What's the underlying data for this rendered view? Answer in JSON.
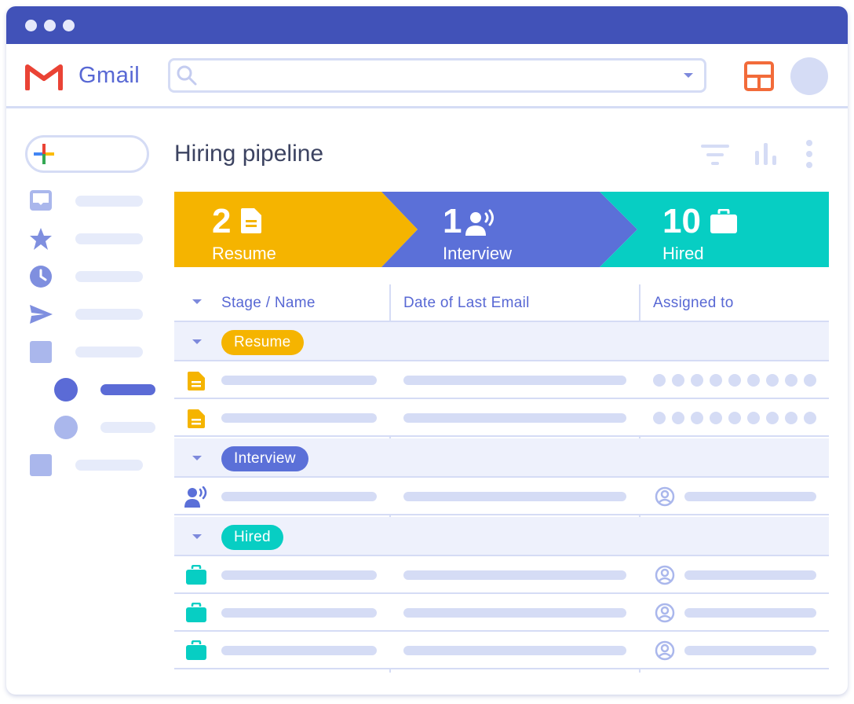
{
  "app": {
    "name": "Gmail",
    "colors": {
      "header": "#4152b8",
      "accent": "#5868d4",
      "resume": "#f5b400",
      "interview": "#5b70d8",
      "hired": "#07cec3",
      "skeleton": "#d5dcf5"
    }
  },
  "topbar": {
    "search_value": "",
    "icons": [
      "search-icon",
      "dropdown-caret-icon",
      "layout-icon",
      "avatar"
    ]
  },
  "sidebar": {
    "compose_icon": "plus-icon",
    "items": [
      {
        "icon": "inbox-icon"
      },
      {
        "icon": "star-icon"
      },
      {
        "icon": "clock-icon"
      },
      {
        "icon": "send-icon"
      },
      {
        "icon": "square-icon"
      },
      {
        "icon": "dot-icon",
        "active": true
      },
      {
        "icon": "dot-icon"
      },
      {
        "icon": "square-icon"
      }
    ]
  },
  "page": {
    "title": "Hiring pipeline",
    "header_icons": [
      "filter-icon",
      "bar-chart-icon",
      "more-vert-icon"
    ]
  },
  "stages": [
    {
      "count": "2",
      "label": "Resume",
      "icon": "document-icon",
      "color": "#f5b400"
    },
    {
      "count": "1",
      "label": "Interview",
      "icon": "person-voice-icon",
      "color": "#5b70d8"
    },
    {
      "count": "10",
      "label": "Hired",
      "icon": "briefcase-icon",
      "color": "#07cec3"
    }
  ],
  "table": {
    "columns": [
      "Stage / Name",
      "Date of Last Email",
      "Assigned to"
    ],
    "groups": [
      {
        "label": "Resume",
        "color": "#f5b400",
        "row_icon": "document-icon",
        "assigned": "multi-dots",
        "rows": 2
      },
      {
        "label": "Interview",
        "color": "#5b70d8",
        "row_icon": "person-voice-icon",
        "assigned": "user",
        "rows": 1
      },
      {
        "label": "Hired",
        "color": "#07cec3",
        "row_icon": "briefcase-icon",
        "assigned": "user",
        "rows": 3
      }
    ]
  }
}
